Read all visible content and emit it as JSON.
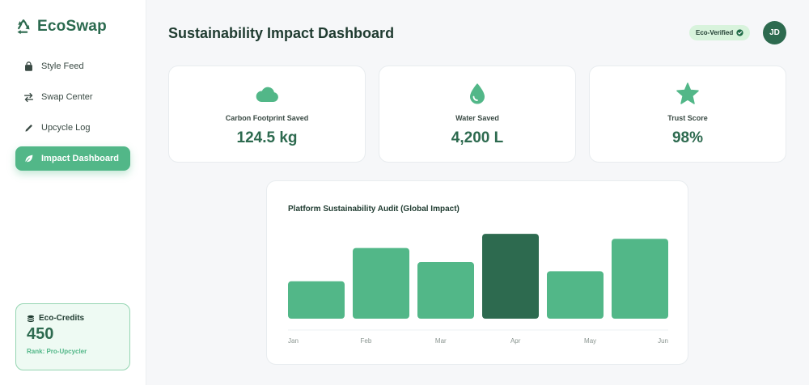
{
  "brand": {
    "name": "EcoSwap"
  },
  "nav": {
    "items": [
      {
        "label": "Style Feed",
        "icon": "bag-icon",
        "active": false
      },
      {
        "label": "Swap Center",
        "icon": "swap-arrows-icon",
        "active": false
      },
      {
        "label": "Upcycle Log",
        "icon": "pencil-icon",
        "active": false
      },
      {
        "label": "Impact Dashboard",
        "icon": "leaf-icon",
        "active": true
      }
    ]
  },
  "credits": {
    "title": "Eco-Credits",
    "value": "450",
    "rank": "Rank: Pro-Upcycler"
  },
  "header": {
    "title": "Sustainability Impact Dashboard",
    "badge": "Eco-Verified",
    "avatar": "JD"
  },
  "stats": [
    {
      "label": "Carbon Footprint Saved",
      "value": "124.5 kg",
      "icon": "cloud-icon"
    },
    {
      "label": "Water Saved",
      "value": "4,200 L",
      "icon": "water-drop-icon"
    },
    {
      "label": "Trust Score",
      "value": "98%",
      "icon": "star-icon"
    }
  ],
  "colors": {
    "accent": "#52b788",
    "accent_dark": "#2d6a4f",
    "highlight_bar": "#2d6a4f"
  },
  "chart_data": {
    "type": "bar",
    "title": "Platform Sustainability Audit (Global Impact)",
    "categories": [
      "Jan",
      "Feb",
      "Mar",
      "Apr",
      "May",
      "Jun"
    ],
    "values": [
      45,
      85,
      68,
      102,
      57,
      96
    ],
    "highlight_index": 3,
    "ylim": [
      0,
      105
    ],
    "grid": false
  }
}
